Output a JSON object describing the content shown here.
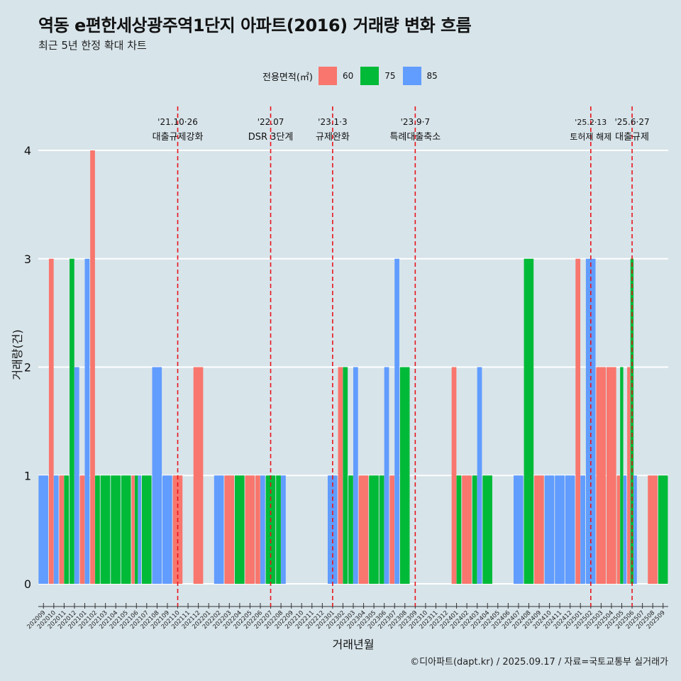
{
  "chart_data": {
    "type": "bar",
    "title": "역동 e편한세상광주역1단지 아파트(2016) 거래량 변화 흐름",
    "subtitle": "최근 5년 한정 확대 차트",
    "xlabel": "거래년월",
    "ylabel": "거래량(건)",
    "ylim": [
      0,
      4
    ],
    "yticks": [
      "0",
      "1",
      "2",
      "3",
      "4"
    ],
    "grid": true,
    "legend": {
      "title": "전용면적(㎡)",
      "position": "top"
    },
    "caption": "©디아파트(dapt.kr) / 2025.09.17 / 자료=국토교통부 실거래가",
    "categories": [
      "202009",
      "202010",
      "202011",
      "202012",
      "202101",
      "202102",
      "202103",
      "202104",
      "202105",
      "202106",
      "202107",
      "202108",
      "202109",
      "202110",
      "202111",
      "202112",
      "202201",
      "202202",
      "202203",
      "202204",
      "202205",
      "202206",
      "202207",
      "202208",
      "202209",
      "202210",
      "202211",
      "202212",
      "202301",
      "202302",
      "202303",
      "202304",
      "202305",
      "202306",
      "202307",
      "202308",
      "202309",
      "202310",
      "202311",
      "202312",
      "202401",
      "202402",
      "202403",
      "202404",
      "202405",
      "202406",
      "202407",
      "202408",
      "202409",
      "202410",
      "202411",
      "202412",
      "202501",
      "202502",
      "202503",
      "202504",
      "202505",
      "202506",
      "202507",
      "202508",
      "202509"
    ],
    "series": [
      {
        "name": "60",
        "color": "#f8766d",
        "values": [
          0,
          3,
          1,
          0,
          1,
          4,
          0,
          0,
          0,
          1,
          0,
          0,
          0,
          1,
          0,
          2,
          0,
          0,
          1,
          0,
          1,
          1,
          0,
          0,
          0,
          0,
          0,
          0,
          0,
          2,
          0,
          1,
          0,
          0,
          1,
          0,
          0,
          0,
          0,
          0,
          2,
          1,
          0,
          0,
          0,
          0,
          0,
          0,
          1,
          0,
          0,
          0,
          3,
          0,
          2,
          2,
          1,
          2,
          0,
          1,
          0
        ]
      },
      {
        "name": "75",
        "color": "#00ba38",
        "values": [
          0,
          0,
          1,
          3,
          0,
          1,
          1,
          1,
          1,
          1,
          1,
          0,
          0,
          0,
          0,
          0,
          0,
          0,
          0,
          1,
          0,
          0,
          1,
          1,
          0,
          0,
          0,
          0,
          0,
          2,
          1,
          0,
          1,
          1,
          0,
          2,
          0,
          0,
          0,
          0,
          1,
          0,
          1,
          1,
          0,
          0,
          0,
          3,
          0,
          0,
          0,
          0,
          0,
          0,
          0,
          0,
          2,
          3,
          0,
          0,
          1
        ]
      },
      {
        "name": "85",
        "color": "#619cff",
        "values": [
          1,
          1,
          0,
          2,
          3,
          0,
          0,
          0,
          0,
          1,
          0,
          2,
          1,
          0,
          0,
          0,
          0,
          1,
          0,
          0,
          0,
          1,
          0,
          1,
          0,
          0,
          0,
          0,
          1,
          0,
          2,
          0,
          0,
          2,
          3,
          0,
          0,
          0,
          0,
          0,
          0,
          0,
          2,
          0,
          0,
          0,
          1,
          0,
          0,
          1,
          1,
          1,
          1,
          3,
          0,
          0,
          1,
          1,
          0,
          0,
          0
        ]
      }
    ],
    "annotations": [
      {
        "x": "202110",
        "date": "'21.10·26",
        "label": "대출규제강화"
      },
      {
        "x": "202207",
        "date": "'22.07",
        "label": "DSR 3단계"
      },
      {
        "x": "202301",
        "date": "'23.1·3",
        "label": "규제완화"
      },
      {
        "x": "202309",
        "date": "'23.9·7",
        "label": "특례대출축소"
      },
      {
        "x": "202502",
        "date": "'25.2·13",
        "label": "토허제 해제"
      },
      {
        "x": "202506",
        "date": "'25.6·27",
        "label": "대출규제"
      }
    ]
  }
}
